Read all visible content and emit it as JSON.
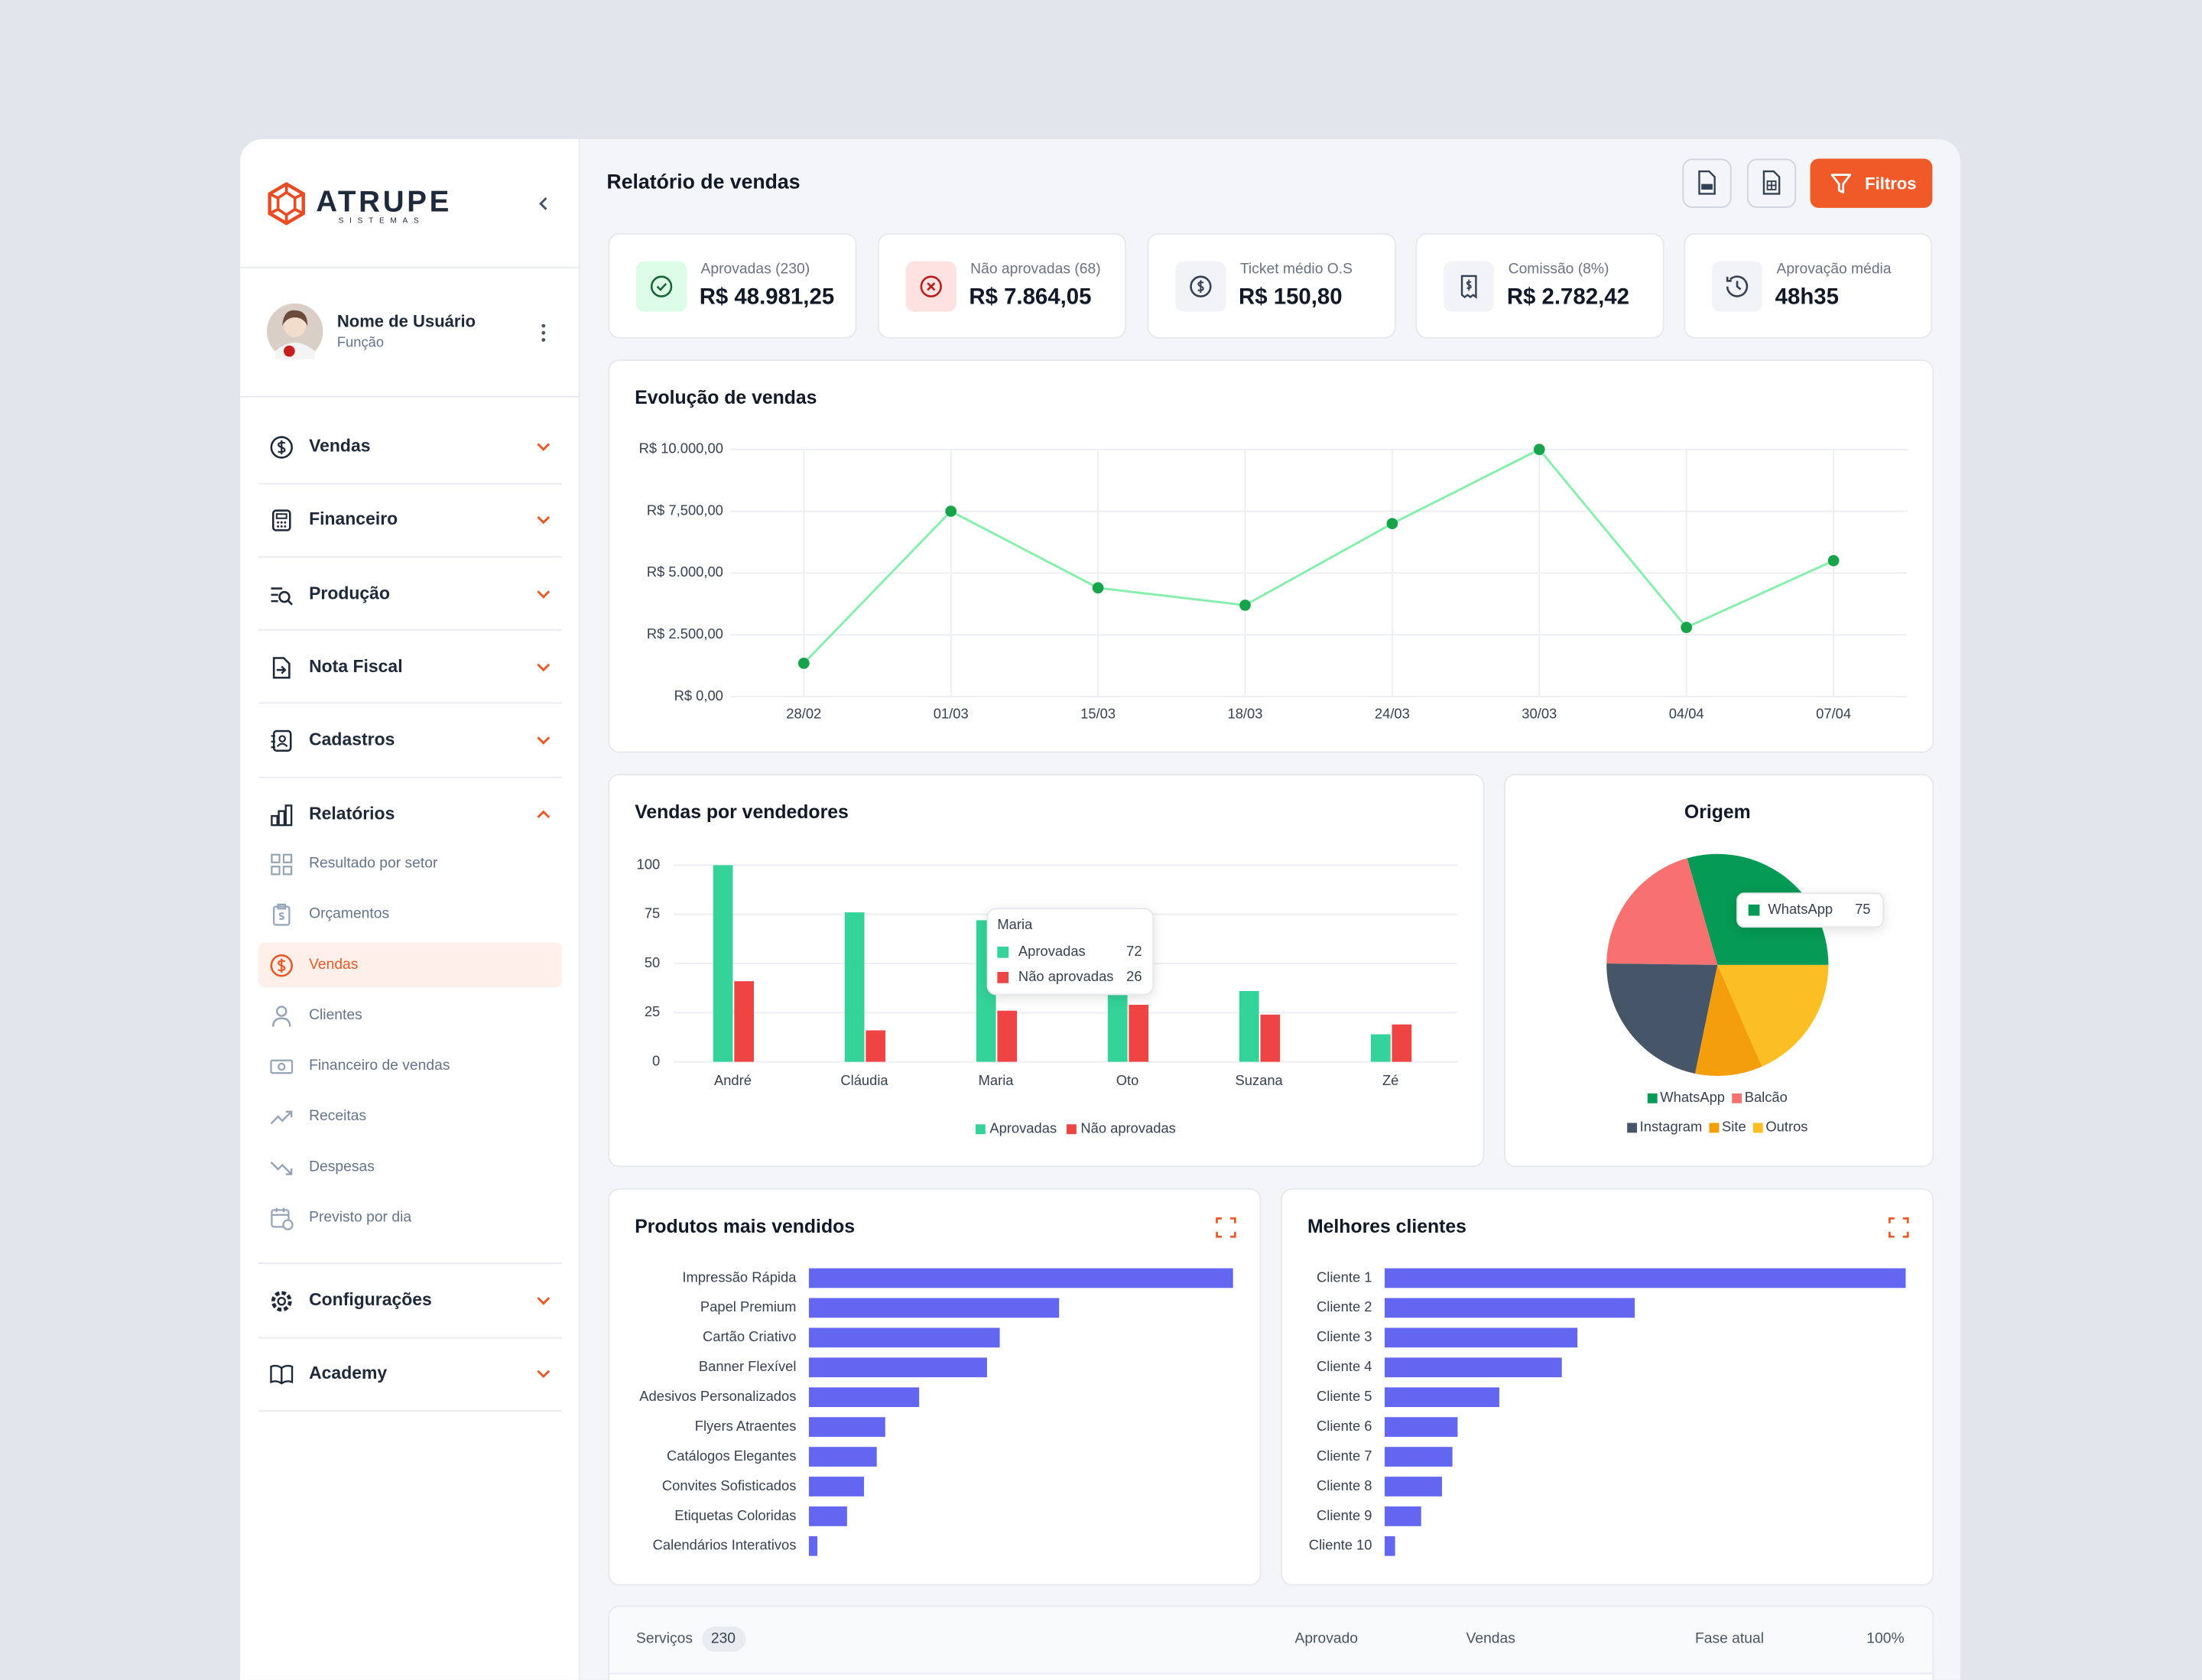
{
  "sidebar": {
    "logo": "ATRUPE",
    "logo_subtitle": "SISTEMAS",
    "user": {
      "name": "Nome de Usuário",
      "role": "Função"
    },
    "menu": [
      "Vendas",
      "Financeiro",
      "Produção",
      "Nota Fiscal",
      "Cadastros",
      "Relatórios"
    ],
    "submenu": [
      "Resultado por setor",
      "Orçamentos",
      "Vendas",
      "Clientes",
      "Financeiro de vendas",
      "Receitas",
      "Despesas",
      "Previsto por dia"
    ],
    "menu_bottom": [
      "Configurações",
      "Academy"
    ]
  },
  "header": {
    "title": "Relatório de vendas",
    "filter_button": "Filtros"
  },
  "kpis": [
    {
      "label": "Aprovadas (230)",
      "value": "R$ 48.981,25"
    },
    {
      "label": "Não aprovadas (68)",
      "value": "R$ 7.864,05"
    },
    {
      "label": "Ticket médio O.S",
      "value": "R$ 150,80"
    },
    {
      "label": "Comissão (8%)",
      "value": "R$ 2.782,42"
    },
    {
      "label": "Aprovação média",
      "value": "48h35"
    }
  ],
  "chart_data": [
    {
      "type": "line",
      "title": "Evolução de vendas",
      "categories": [
        "28/02",
        "01/03",
        "15/03",
        "18/03",
        "24/03",
        "30/03",
        "04/04",
        "07/04"
      ],
      "values": [
        1350,
        7500,
        4400,
        3700,
        7000,
        10000,
        2800,
        5500
      ],
      "color": "#86efac",
      "marker_color": "#16a34a",
      "ylim": [
        0,
        10000
      ],
      "yticks": [
        {
          "value": 0,
          "label": "R$ 0,00"
        },
        {
          "value": 2500,
          "label": "R$ 2.500,00"
        },
        {
          "value": 5000,
          "label": "R$ 5.000,00"
        },
        {
          "value": 7500,
          "label": "R$ 7,500,00"
        },
        {
          "value": 10000,
          "label": "R$ 10.000,00"
        }
      ],
      "grid": true
    },
    {
      "type": "bar",
      "title": "Vendas por vendedores",
      "categories": [
        "André",
        "Cláudia",
        "Maria",
        "Oto",
        "Suzana",
        "Zé"
      ],
      "series": [
        {
          "name": "Aprovadas",
          "color": "#34d399",
          "values": [
            100,
            76,
            72,
            35,
            36,
            14
          ]
        },
        {
          "name": "Não aprovadas",
          "color": "#ef4444",
          "values": [
            41,
            16,
            26,
            29,
            24,
            19
          ]
        }
      ],
      "ylim": [
        0,
        100
      ],
      "yticks": [
        0,
        25,
        50,
        75,
        100
      ],
      "grid": true,
      "legend": "bottom"
    },
    {
      "type": "pie",
      "title": "Origem",
      "categories": [
        "WhatsApp",
        "Balcão",
        "Instagram",
        "Site",
        "Outros"
      ],
      "values": [
        75,
        52,
        56,
        25,
        47
      ],
      "colors": [
        "#059a55",
        "#f87171",
        "#475569",
        "#f59e0b",
        "#fbbf24"
      ],
      "legend": "bottom"
    },
    {
      "type": "bar",
      "orientation": "horizontal",
      "title": "Produtos mais vendidos",
      "categories": [
        "Impressão Rápida",
        "Papel Premium",
        "Cartão Criativo",
        "Banner Flexível",
        "Adesivos Personalizados",
        "Flyers Atraentes",
        "Catálogos Elegantes",
        "Convites Sofisticados",
        "Etiquetas Coloridas",
        "Calendários Interativos"
      ],
      "values": [
        100,
        59,
        45,
        42,
        26,
        18,
        16,
        13,
        9,
        2
      ],
      "xlim": [
        0,
        100
      ],
      "color": "#6366f1"
    },
    {
      "type": "bar",
      "orientation": "horizontal",
      "title": "Melhores clientes",
      "categories": [
        "Cliente 1",
        "Cliente 2",
        "Cliente 3",
        "Cliente 4",
        "Cliente 5",
        "Cliente 6",
        "Cliente 7",
        "Cliente 8",
        "Cliente 9",
        "Cliente 10"
      ],
      "values": [
        100,
        48,
        37,
        34,
        22,
        14,
        13,
        11,
        7,
        2
      ],
      "xlim": [
        0,
        100
      ],
      "color": "#6366f1"
    }
  ],
  "table": {
    "label": "Serviços",
    "count": 230,
    "columns": [
      "Aprovado",
      "Vendas",
      "Fase atual",
      "100%"
    ]
  }
}
